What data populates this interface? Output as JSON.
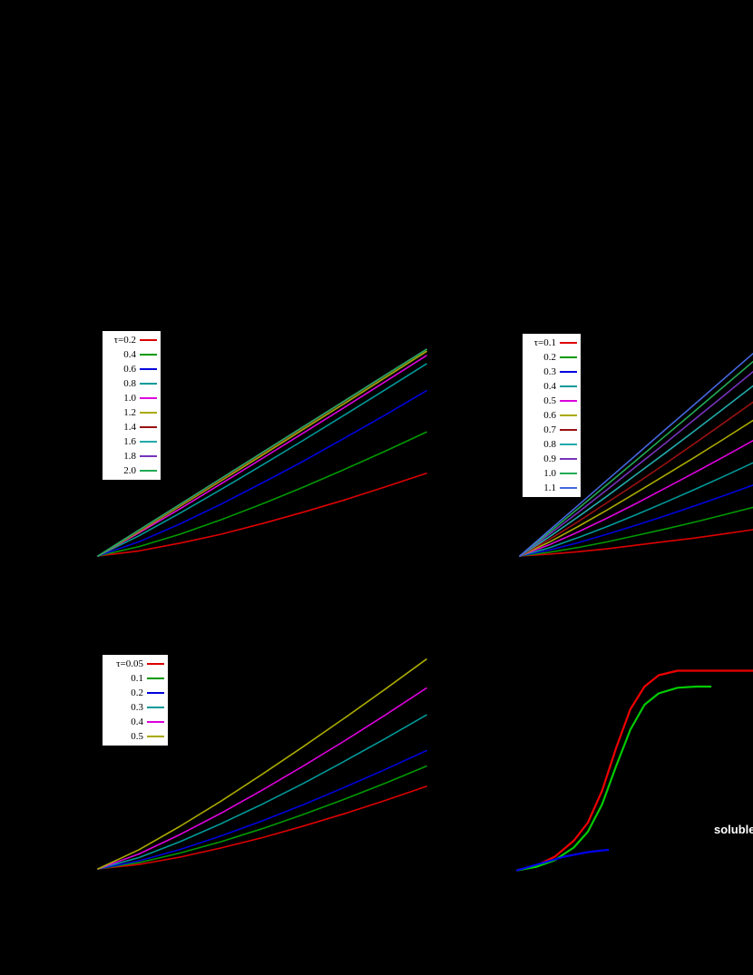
{
  "labels": {
    "soluble": "soluble"
  },
  "colors": {
    "background": "#000000",
    "legend_bg": "#ffffff",
    "legend_border": "#000000",
    "legend_text": "#000000"
  },
  "chart_data": [
    {
      "id": "panel-a",
      "type": "line",
      "title": "",
      "xlabel": "",
      "ylabel": "",
      "xlim": [
        0,
        1
      ],
      "ylim": [
        0,
        1
      ],
      "grid": false,
      "legend_position": "top-left",
      "x": [
        0,
        0.125,
        0.25,
        0.375,
        0.5,
        0.625,
        0.75,
        0.875,
        1.0
      ],
      "series": [
        {
          "name": "tau-0.2",
          "legend_label": "τ=0.2",
          "color": "#dd0000",
          "y": [
            0,
            0.022,
            0.056,
            0.095,
            0.141,
            0.191,
            0.244,
            0.301,
            0.36
          ]
        },
        {
          "name": "tau-0.4",
          "legend_label": "0.4",
          "color": "#009900",
          "y": [
            0,
            0.041,
            0.095,
            0.158,
            0.227,
            0.3,
            0.377,
            0.457,
            0.54
          ]
        },
        {
          "name": "tau-0.6",
          "legend_label": "0.6",
          "color": "#0000dd",
          "y": [
            0,
            0.062,
            0.14,
            0.226,
            0.318,
            0.413,
            0.513,
            0.615,
            0.72
          ]
        },
        {
          "name": "tau-0.8",
          "legend_label": "0.8",
          "color": "#009999",
          "y": [
            0,
            0.088,
            0.187,
            0.29,
            0.396,
            0.504,
            0.614,
            0.725,
            0.837
          ]
        },
        {
          "name": "tau-1.0",
          "legend_label": "1.0",
          "color": "#dd00dd",
          "y": [
            0,
            0.101,
            0.206,
            0.315,
            0.425,
            0.536,
            0.647,
            0.76,
            0.873
          ]
        },
        {
          "name": "tau-1.2",
          "legend_label": "1.2",
          "color": "#aaaa00",
          "y": [
            0,
            0.106,
            0.217,
            0.328,
            0.439,
            0.552,
            0.664,
            0.778,
            0.891
          ]
        },
        {
          "name": "tau-1.4",
          "legend_label": "1.4",
          "color": "#991111",
          "y": [
            0,
            0.11,
            0.222,
            0.334,
            0.447,
            0.56,
            0.673,
            0.787,
            0.9
          ]
        },
        {
          "name": "tau-1.6",
          "legend_label": "1.6",
          "color": "#22aaaa",
          "y": [
            0,
            0.113,
            0.225,
            0.338,
            0.45,
            0.563,
            0.675,
            0.788,
            0.9
          ]
        },
        {
          "name": "tau-1.8",
          "legend_label": "1.8",
          "color": "#7733bb",
          "y": [
            0,
            0.113,
            0.225,
            0.338,
            0.45,
            0.563,
            0.675,
            0.788,
            0.9
          ]
        },
        {
          "name": "tau-2.0",
          "legend_label": "2.0",
          "color": "#22aa55",
          "y": [
            0,
            0.113,
            0.225,
            0.338,
            0.45,
            0.563,
            0.675,
            0.788,
            0.9
          ]
        }
      ]
    },
    {
      "id": "panel-b",
      "type": "line",
      "title": "",
      "xlabel": "",
      "ylabel": "",
      "xlim": [
        0,
        1
      ],
      "ylim": [
        0,
        1
      ],
      "grid": false,
      "legend_position": "top-left",
      "x": [
        0,
        0.125,
        0.25,
        0.375,
        0.5,
        0.625,
        0.75,
        0.875,
        1.0
      ],
      "series": [
        {
          "name": "tau-0.1",
          "legend_label": "τ=0.1",
          "color": "#dd0000",
          "y": [
            0,
            0.008,
            0.019,
            0.032,
            0.048,
            0.064,
            0.08,
            0.098,
            0.117
          ]
        },
        {
          "name": "tau-0.2",
          "legend_label": "0.2",
          "color": "#009900",
          "y": [
            0,
            0.016,
            0.038,
            0.063,
            0.091,
            0.12,
            0.151,
            0.183,
            0.216
          ]
        },
        {
          "name": "tau-0.3",
          "legend_label": "0.3",
          "color": "#0000dd",
          "y": [
            0,
            0.026,
            0.059,
            0.097,
            0.137,
            0.179,
            0.223,
            0.268,
            0.315
          ]
        },
        {
          "name": "tau-0.4",
          "legend_label": "0.4",
          "color": "#009999",
          "y": [
            0,
            0.036,
            0.082,
            0.131,
            0.184,
            0.239,
            0.296,
            0.354,
            0.414
          ]
        },
        {
          "name": "tau-0.5",
          "legend_label": "0.5",
          "color": "#dd00dd",
          "y": [
            0,
            0.049,
            0.107,
            0.169,
            0.234,
            0.302,
            0.371,
            0.441,
            0.513
          ]
        },
        {
          "name": "tau-0.6",
          "legend_label": "0.6",
          "color": "#aaaa00",
          "y": [
            0,
            0.061,
            0.131,
            0.205,
            0.282,
            0.36,
            0.439,
            0.52,
            0.603
          ]
        },
        {
          "name": "tau-0.7",
          "legend_label": "0.7",
          "color": "#991111",
          "y": [
            0,
            0.072,
            0.153,
            0.238,
            0.323,
            0.411,
            0.501,
            0.592,
            0.684
          ]
        },
        {
          "name": "tau-0.8",
          "legend_label": "0.8",
          "color": "#22aaaa",
          "y": [
            0,
            0.084,
            0.174,
            0.267,
            0.363,
            0.459,
            0.557,
            0.656,
            0.756
          ]
        },
        {
          "name": "tau-0.9",
          "legend_label": "0.9",
          "color": "#7733bb",
          "y": [
            0,
            0.095,
            0.194,
            0.295,
            0.399,
            0.502,
            0.608,
            0.713,
            0.819
          ]
        },
        {
          "name": "tau-1.0",
          "legend_label": "1.0",
          "color": "#22aa55",
          "y": [
            0,
            0.104,
            0.211,
            0.318,
            0.426,
            0.535,
            0.644,
            0.754,
            0.864
          ]
        },
        {
          "name": "tau-1.1",
          "legend_label": "1.1",
          "color": "#4466dd",
          "y": [
            0,
            0.113,
            0.225,
            0.338,
            0.45,
            0.563,
            0.675,
            0.788,
            0.9
          ]
        }
      ]
    },
    {
      "id": "panel-c",
      "type": "line",
      "title": "",
      "xlabel": "",
      "ylabel": "",
      "xlim": [
        0,
        1
      ],
      "ylim": [
        0,
        1
      ],
      "grid": false,
      "legend_position": "top-left",
      "x": [
        0,
        0.125,
        0.25,
        0.375,
        0.5,
        0.625,
        0.75,
        0.875,
        1.0
      ],
      "series": [
        {
          "name": "tau-0.05",
          "legend_label": "τ=0.05",
          "color": "#dd0000",
          "y": [
            0,
            0.02,
            0.053,
            0.094,
            0.14,
            0.192,
            0.247,
            0.307,
            0.37
          ]
        },
        {
          "name": "tau-0.1",
          "legend_label": "0.1",
          "color": "#009900",
          "y": [
            0,
            0.028,
            0.071,
            0.122,
            0.18,
            0.244,
            0.312,
            0.384,
            0.46
          ]
        },
        {
          "name": "tau-0.2",
          "legend_label": "0.2",
          "color": "#0000dd",
          "y": [
            0,
            0.036,
            0.087,
            0.148,
            0.215,
            0.288,
            0.365,
            0.446,
            0.53
          ]
        },
        {
          "name": "tau-0.3",
          "legend_label": "0.3",
          "color": "#009999",
          "y": [
            0,
            0.051,
            0.122,
            0.203,
            0.29,
            0.383,
            0.482,
            0.584,
            0.69
          ]
        },
        {
          "name": "tau-0.4",
          "legend_label": "0.4",
          "color": "#dd00dd",
          "y": [
            0,
            0.067,
            0.154,
            0.25,
            0.353,
            0.461,
            0.573,
            0.69,
            0.81
          ]
        },
        {
          "name": "tau-0.5",
          "legend_label": "0.5",
          "color": "#aaaa00",
          "y": [
            0,
            0.086,
            0.191,
            0.304,
            0.424,
            0.548,
            0.675,
            0.806,
            0.94
          ]
        }
      ]
    },
    {
      "id": "panel-d",
      "type": "line",
      "title": "",
      "xlabel": "",
      "ylabel": "",
      "xlim": [
        0,
        1
      ],
      "ylim": [
        0,
        1
      ],
      "grid": false,
      "annotations": [
        {
          "text": "soluble",
          "color": "#ffffff",
          "position": "bottom-right"
        }
      ],
      "series": [
        {
          "name": "sigmoid-red",
          "color": "#ee0000",
          "stroke": 2.2,
          "x": [
            0,
            0.08,
            0.16,
            0.24,
            0.3,
            0.36,
            0.42,
            0.48,
            0.54,
            0.6,
            0.68,
            0.76,
            0.84,
            0.92,
            1.0
          ],
          "y": [
            0.01,
            0.03,
            0.07,
            0.14,
            0.22,
            0.36,
            0.55,
            0.72,
            0.82,
            0.87,
            0.89,
            0.89,
            0.89,
            0.89,
            0.89
          ]
        },
        {
          "name": "sigmoid-green",
          "color": "#00cc00",
          "stroke": 2.2,
          "x": [
            0,
            0.08,
            0.16,
            0.24,
            0.3,
            0.36,
            0.42,
            0.48,
            0.54,
            0.6,
            0.68,
            0.76,
            0.82
          ],
          "y": [
            0.01,
            0.025,
            0.055,
            0.11,
            0.18,
            0.3,
            0.47,
            0.63,
            0.74,
            0.79,
            0.815,
            0.82,
            0.82
          ]
        },
        {
          "name": "flat-blue",
          "color": "#0000ee",
          "stroke": 2.2,
          "x": [
            0,
            0.1,
            0.2,
            0.3,
            0.385
          ],
          "y": [
            0.01,
            0.04,
            0.07,
            0.09,
            0.1
          ]
        }
      ]
    }
  ]
}
